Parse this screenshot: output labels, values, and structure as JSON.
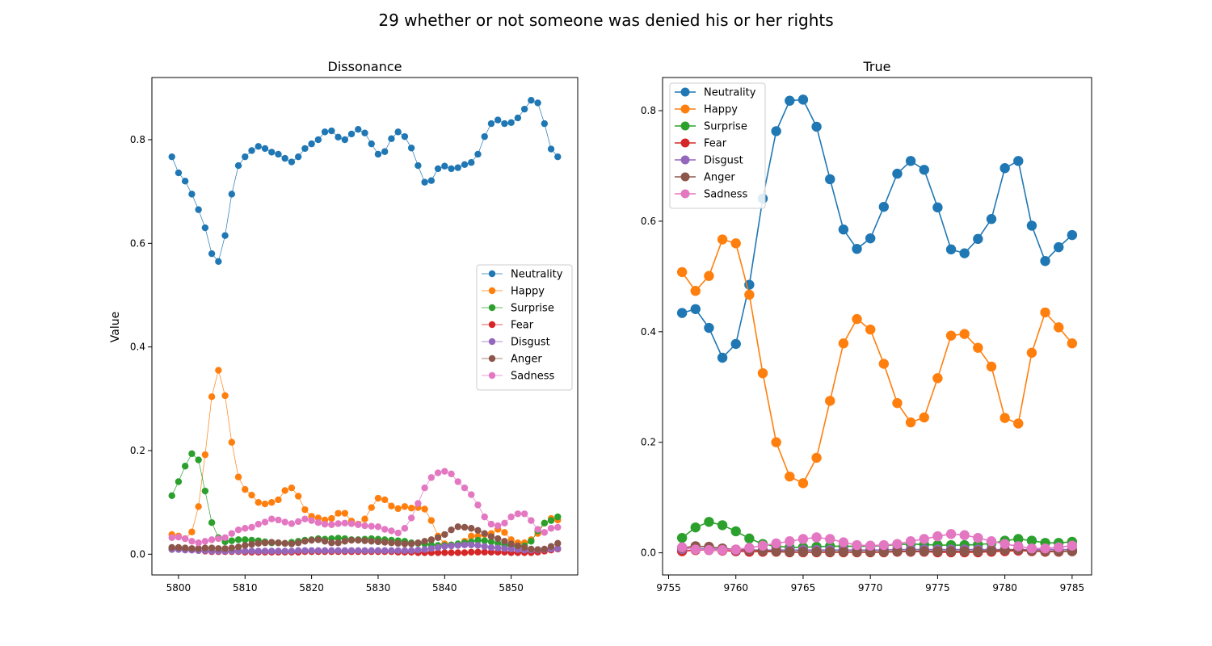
{
  "figure": {
    "suptitle": "29 whether or not someone was denied his or her rights"
  },
  "colors": {
    "Neutrality": "#1f77b4",
    "Happy": "#ff7f0e",
    "Surprise": "#2ca02c",
    "Fear": "#d62728",
    "Disgust": "#9467bd",
    "Anger": "#8c564b",
    "Sadness": "#e377c2"
  },
  "chart_data": [
    {
      "type": "line",
      "title": "Dissonance",
      "xlabel": "",
      "ylabel": "Value",
      "xlim": [
        5796,
        5860
      ],
      "ylim": [
        -0.04,
        0.92
      ],
      "xticks": [
        5800,
        5810,
        5820,
        5830,
        5840,
        5850
      ],
      "yticks": [
        0.0,
        0.2,
        0.4,
        0.6,
        0.8
      ],
      "ytick_labels": [
        "0.0",
        "0.2",
        "0.4",
        "0.6",
        "0.8"
      ],
      "legend_position": "center-right",
      "x_start": 5799,
      "x_end": 5857,
      "series": [
        {
          "name": "Neutrality",
          "values": [
            0.767,
            0.736,
            0.72,
            0.695,
            0.665,
            0.63,
            0.58,
            0.565,
            0.615,
            0.695,
            0.75,
            0.767,
            0.779,
            0.787,
            0.783,
            0.776,
            0.772,
            0.764,
            0.757,
            0.767,
            0.783,
            0.792,
            0.8,
            0.815,
            0.817,
            0.805,
            0.8,
            0.811,
            0.82,
            0.813,
            0.792,
            0.772,
            0.777,
            0.802,
            0.815,
            0.806,
            0.784,
            0.75,
            0.718,
            0.721,
            0.744,
            0.749,
            0.744,
            0.746,
            0.752,
            0.756,
            0.772,
            0.806,
            0.831,
            0.838,
            0.831,
            0.833,
            0.842,
            0.859,
            0.876,
            0.871,
            0.831,
            0.782,
            0.767
          ]
        },
        {
          "name": "Happy",
          "values": [
            0.038,
            0.035,
            0.03,
            0.043,
            0.092,
            0.192,
            0.304,
            0.355,
            0.306,
            0.216,
            0.149,
            0.125,
            0.114,
            0.1,
            0.097,
            0.1,
            0.105,
            0.123,
            0.128,
            0.112,
            0.086,
            0.073,
            0.07,
            0.066,
            0.069,
            0.079,
            0.079,
            0.064,
            0.058,
            0.068,
            0.09,
            0.108,
            0.105,
            0.093,
            0.088,
            0.092,
            0.089,
            0.09,
            0.087,
            0.065,
            0.035,
            0.02,
            0.018,
            0.019,
            0.025,
            0.035,
            0.035,
            0.038,
            0.04,
            0.048,
            0.042,
            0.028,
            0.022,
            0.022,
            0.028,
            0.04,
            0.06,
            0.069,
            0.066
          ]
        },
        {
          "name": "Surprise",
          "values": [
            0.113,
            0.14,
            0.17,
            0.194,
            0.182,
            0.122,
            0.061,
            0.032,
            0.024,
            0.026,
            0.028,
            0.028,
            0.027,
            0.026,
            0.024,
            0.022,
            0.022,
            0.021,
            0.023,
            0.025,
            0.027,
            0.028,
            0.03,
            0.029,
            0.03,
            0.031,
            0.03,
            0.028,
            0.028,
            0.029,
            0.03,
            0.029,
            0.028,
            0.027,
            0.026,
            0.025,
            0.022,
            0.021,
            0.02,
            0.018,
            0.017,
            0.017,
            0.018,
            0.02,
            0.022,
            0.024,
            0.027,
            0.026,
            0.024,
            0.021,
            0.018,
            0.016,
            0.015,
            0.016,
            0.025,
            0.045,
            0.06,
            0.065,
            0.072
          ]
        },
        {
          "name": "Fear",
          "values": [
            0.01,
            0.01,
            0.009,
            0.008,
            0.007,
            0.006,
            0.005,
            0.005,
            0.005,
            0.005,
            0.005,
            0.004,
            0.004,
            0.004,
            0.004,
            0.004,
            0.004,
            0.004,
            0.004,
            0.004,
            0.005,
            0.005,
            0.005,
            0.005,
            0.005,
            0.005,
            0.005,
            0.005,
            0.005,
            0.005,
            0.005,
            0.005,
            0.005,
            0.005,
            0.004,
            0.004,
            0.004,
            0.003,
            0.003,
            0.003,
            0.003,
            0.003,
            0.003,
            0.003,
            0.003,
            0.004,
            0.004,
            0.004,
            0.004,
            0.004,
            0.004,
            0.003,
            0.003,
            0.003,
            0.003,
            0.004,
            0.006,
            0.008,
            0.01
          ]
        },
        {
          "name": "Disgust",
          "values": [
            0.009,
            0.009,
            0.008,
            0.008,
            0.007,
            0.007,
            0.006,
            0.006,
            0.006,
            0.006,
            0.006,
            0.006,
            0.006,
            0.006,
            0.006,
            0.006,
            0.006,
            0.006,
            0.006,
            0.007,
            0.007,
            0.007,
            0.007,
            0.007,
            0.007,
            0.007,
            0.007,
            0.007,
            0.007,
            0.007,
            0.007,
            0.007,
            0.007,
            0.007,
            0.007,
            0.007,
            0.007,
            0.008,
            0.009,
            0.011,
            0.013,
            0.015,
            0.016,
            0.017,
            0.018,
            0.018,
            0.017,
            0.015,
            0.013,
            0.012,
            0.011,
            0.01,
            0.009,
            0.008,
            0.008,
            0.008,
            0.009,
            0.01,
            0.011
          ]
        },
        {
          "name": "Anger",
          "values": [
            0.013,
            0.013,
            0.012,
            0.011,
            0.011,
            0.012,
            0.012,
            0.011,
            0.011,
            0.012,
            0.014,
            0.017,
            0.019,
            0.021,
            0.022,
            0.023,
            0.022,
            0.021,
            0.02,
            0.022,
            0.025,
            0.027,
            0.028,
            0.025,
            0.022,
            0.022,
            0.025,
            0.027,
            0.027,
            0.026,
            0.025,
            0.024,
            0.023,
            0.022,
            0.021,
            0.02,
            0.02,
            0.022,
            0.025,
            0.028,
            0.032,
            0.038,
            0.047,
            0.053,
            0.052,
            0.05,
            0.046,
            0.04,
            0.034,
            0.03,
            0.025,
            0.02,
            0.016,
            0.013,
            0.01,
            0.009,
            0.01,
            0.015,
            0.021
          ]
        },
        {
          "name": "Sadness",
          "values": [
            0.032,
            0.033,
            0.03,
            0.025,
            0.022,
            0.025,
            0.028,
            0.03,
            0.032,
            0.04,
            0.047,
            0.05,
            0.052,
            0.058,
            0.062,
            0.068,
            0.066,
            0.062,
            0.059,
            0.063,
            0.068,
            0.065,
            0.061,
            0.058,
            0.057,
            0.059,
            0.06,
            0.059,
            0.057,
            0.055,
            0.054,
            0.053,
            0.048,
            0.045,
            0.041,
            0.05,
            0.07,
            0.098,
            0.128,
            0.148,
            0.157,
            0.16,
            0.155,
            0.14,
            0.128,
            0.115,
            0.095,
            0.072,
            0.058,
            0.055,
            0.06,
            0.072,
            0.078,
            0.078,
            0.065,
            0.048,
            0.042,
            0.05,
            0.052
          ]
        }
      ]
    },
    {
      "type": "line",
      "title": "True",
      "xlabel": "",
      "ylabel": "",
      "xlim": [
        9754.55,
        9786.45
      ],
      "ylim": [
        -0.04,
        0.86
      ],
      "xticks": [
        9755,
        9760,
        9765,
        9770,
        9775,
        9780,
        9785
      ],
      "yticks": [
        0.0,
        0.2,
        0.4,
        0.6,
        0.8
      ],
      "ytick_labels": [
        "0.0",
        "0.2",
        "0.4",
        "0.6",
        "0.8"
      ],
      "legend_position": "upper-left",
      "x_start": 9756,
      "x_end": 9785,
      "series": [
        {
          "name": "Neutrality",
          "values": [
            0.434,
            0.441,
            0.407,
            0.353,
            0.378,
            0.485,
            0.641,
            0.763,
            0.818,
            0.82,
            0.771,
            0.676,
            0.585,
            0.55,
            0.569,
            0.626,
            0.686,
            0.709,
            0.693,
            0.625,
            0.549,
            0.542,
            0.568,
            0.604,
            0.696,
            0.709,
            0.592,
            0.528,
            0.553,
            0.575
          ]
        },
        {
          "name": "Happy",
          "values": [
            0.508,
            0.474,
            0.501,
            0.567,
            0.56,
            0.467,
            0.325,
            0.2,
            0.138,
            0.126,
            0.172,
            0.275,
            0.379,
            0.423,
            0.404,
            0.342,
            0.271,
            0.236,
            0.245,
            0.316,
            0.393,
            0.396,
            0.371,
            0.337,
            0.244,
            0.234,
            0.362,
            0.435,
            0.408,
            0.379
          ]
        },
        {
          "name": "Surprise",
          "values": [
            0.027,
            0.046,
            0.056,
            0.05,
            0.039,
            0.026,
            0.016,
            0.012,
            0.01,
            0.01,
            0.011,
            0.012,
            0.012,
            0.012,
            0.012,
            0.013,
            0.015,
            0.016,
            0.015,
            0.014,
            0.014,
            0.014,
            0.015,
            0.017,
            0.022,
            0.025,
            0.022,
            0.018,
            0.018,
            0.02
          ]
        },
        {
          "name": "Fear",
          "values": [
            0.003,
            0.005,
            0.005,
            0.004,
            0.003,
            0.002,
            0.002,
            0.002,
            0.001,
            0.001,
            0.001,
            0.001,
            0.001,
            0.001,
            0.001,
            0.001,
            0.002,
            0.002,
            0.002,
            0.001,
            0.001,
            0.001,
            0.001,
            0.002,
            0.003,
            0.004,
            0.003,
            0.002,
            0.002,
            0.003
          ]
        },
        {
          "name": "Disgust",
          "values": [
            0.007,
            0.008,
            0.007,
            0.006,
            0.005,
            0.005,
            0.005,
            0.005,
            0.005,
            0.005,
            0.005,
            0.005,
            0.005,
            0.005,
            0.005,
            0.005,
            0.006,
            0.006,
            0.006,
            0.006,
            0.006,
            0.006,
            0.006,
            0.006,
            0.006,
            0.006,
            0.006,
            0.006,
            0.006,
            0.006
          ]
        },
        {
          "name": "Anger",
          "values": [
            0.009,
            0.012,
            0.011,
            0.008,
            0.006,
            0.005,
            0.004,
            0.003,
            0.002,
            0.002,
            0.002,
            0.002,
            0.002,
            0.002,
            0.002,
            0.002,
            0.003,
            0.003,
            0.003,
            0.003,
            0.003,
            0.003,
            0.003,
            0.004,
            0.005,
            0.006,
            0.004,
            0.003,
            0.003,
            0.003
          ]
        },
        {
          "name": "Sadness",
          "values": [
            0.01,
            0.006,
            0.005,
            0.005,
            0.006,
            0.009,
            0.013,
            0.017,
            0.021,
            0.025,
            0.028,
            0.025,
            0.019,
            0.014,
            0.013,
            0.014,
            0.016,
            0.021,
            0.025,
            0.03,
            0.034,
            0.032,
            0.027,
            0.021,
            0.016,
            0.012,
            0.008,
            0.008,
            0.01,
            0.013
          ]
        }
      ]
    }
  ]
}
